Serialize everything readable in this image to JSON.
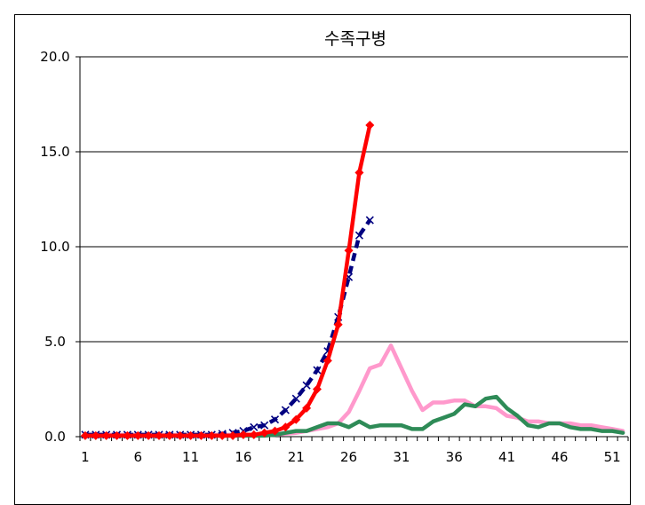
{
  "chart_data": {
    "type": "line",
    "title": "수족구병",
    "xlabel": "",
    "ylabel": "",
    "ylim": [
      0,
      20
    ],
    "yticks": [
      "0.0",
      "5.0",
      "10.0",
      "15.0",
      "20.0"
    ],
    "xlim": [
      1,
      52
    ],
    "xticks": [
      "1",
      "6",
      "11",
      "16",
      "21",
      "26",
      "31",
      "36",
      "41",
      "46",
      "51"
    ],
    "grid": "horizontal",
    "legend": "none",
    "series": [
      {
        "color": "#ff99cc",
        "marker": "none",
        "style": "solid",
        "x": [
          1,
          2,
          3,
          4,
          5,
          6,
          7,
          8,
          9,
          10,
          11,
          12,
          13,
          14,
          15,
          16,
          17,
          18,
          19,
          20,
          21,
          22,
          23,
          24,
          25,
          26,
          27,
          28,
          29,
          30,
          31,
          32,
          33,
          34,
          35,
          36,
          37,
          38,
          39,
          40,
          41,
          42,
          43,
          44,
          45,
          46,
          47,
          48,
          49,
          50,
          51,
          52
        ],
        "values": [
          0.1,
          0.1,
          0.1,
          0.1,
          0.1,
          0.1,
          0.1,
          0.1,
          0.1,
          0.1,
          0.1,
          0.1,
          0.1,
          0.1,
          0.1,
          0.1,
          0.1,
          0.1,
          0.1,
          0.15,
          0.2,
          0.3,
          0.4,
          0.5,
          0.7,
          1.3,
          2.4,
          3.6,
          3.8,
          4.8,
          3.6,
          2.4,
          1.4,
          1.8,
          1.8,
          1.9,
          1.9,
          1.6,
          1.6,
          1.5,
          1.1,
          1.0,
          0.8,
          0.8,
          0.7,
          0.7,
          0.7,
          0.6,
          0.6,
          0.5,
          0.4,
          0.3
        ]
      },
      {
        "color": "#2e8b57",
        "marker": "none",
        "style": "solid",
        "x": [
          1,
          2,
          3,
          4,
          5,
          6,
          7,
          8,
          9,
          10,
          11,
          12,
          13,
          14,
          15,
          16,
          17,
          18,
          19,
          20,
          21,
          22,
          23,
          24,
          25,
          26,
          27,
          28,
          29,
          30,
          31,
          32,
          33,
          34,
          35,
          36,
          37,
          38,
          39,
          40,
          41,
          42,
          43,
          44,
          45,
          46,
          47,
          48,
          49,
          50,
          51,
          52
        ],
        "values": [
          0.05,
          0.05,
          0.05,
          0.05,
          0.05,
          0.05,
          0.05,
          0.05,
          0.05,
          0.05,
          0.05,
          0.05,
          0.05,
          0.05,
          0.05,
          0.05,
          0.05,
          0.05,
          0.1,
          0.2,
          0.3,
          0.3,
          0.5,
          0.7,
          0.7,
          0.5,
          0.8,
          0.5,
          0.6,
          0.6,
          0.6,
          0.4,
          0.4,
          0.8,
          1.0,
          1.2,
          1.7,
          1.6,
          2.0,
          2.1,
          1.5,
          1.1,
          0.6,
          0.5,
          0.7,
          0.7,
          0.5,
          0.4,
          0.4,
          0.3,
          0.3,
          0.2
        ]
      },
      {
        "color": "#000080",
        "marker": "x",
        "style": "dashed",
        "x": [
          1,
          2,
          3,
          4,
          5,
          6,
          7,
          8,
          9,
          10,
          11,
          12,
          13,
          14,
          15,
          16,
          17,
          18,
          19,
          20,
          21,
          22,
          23,
          24,
          25,
          26,
          27,
          28
        ],
        "values": [
          0.1,
          0.1,
          0.1,
          0.1,
          0.1,
          0.1,
          0.1,
          0.1,
          0.1,
          0.1,
          0.1,
          0.1,
          0.1,
          0.15,
          0.2,
          0.3,
          0.5,
          0.6,
          0.9,
          1.4,
          2.0,
          2.7,
          3.5,
          4.5,
          6.3,
          8.4,
          10.6,
          11.4
        ]
      },
      {
        "color": "#ff0000",
        "marker": "diamond",
        "style": "solid",
        "x": [
          1,
          2,
          3,
          4,
          5,
          6,
          7,
          8,
          9,
          10,
          11,
          12,
          13,
          14,
          15,
          16,
          17,
          18,
          19,
          20,
          21,
          22,
          23,
          24,
          25,
          26,
          27,
          28
        ],
        "values": [
          0.05,
          0.05,
          0.05,
          0.05,
          0.05,
          0.05,
          0.05,
          0.05,
          0.05,
          0.05,
          0.05,
          0.05,
          0.05,
          0.05,
          0.05,
          0.1,
          0.1,
          0.2,
          0.3,
          0.5,
          0.9,
          1.5,
          2.5,
          4.0,
          5.9,
          9.8,
          13.9,
          16.4
        ]
      }
    ]
  }
}
